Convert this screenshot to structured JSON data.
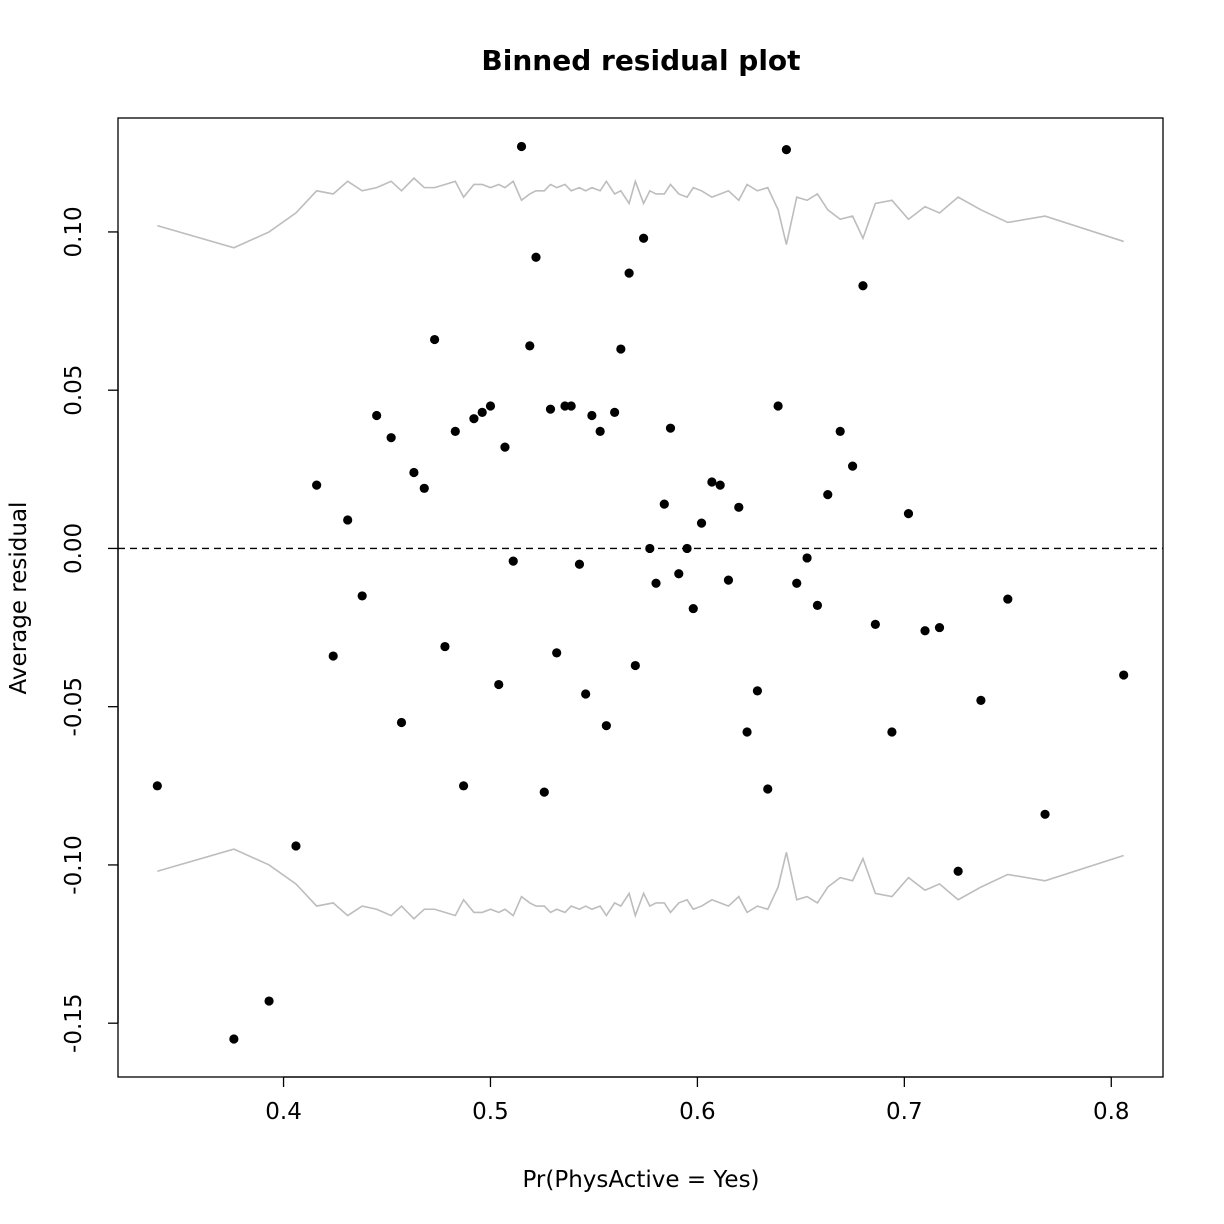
{
  "chart_data": {
    "type": "scatter",
    "title": "Binned residual plot",
    "xlabel": "Pr(PhysActive = Yes)",
    "ylabel": "Average residual",
    "xlim": [
      0.32,
      0.825
    ],
    "ylim": [
      -0.167,
      0.136
    ],
    "xticks": [
      0.4,
      0.5,
      0.6,
      0.7,
      0.8
    ],
    "xtick_labels": [
      "0.4",
      "0.5",
      "0.6",
      "0.7",
      "0.8"
    ],
    "yticks": [
      -0.15,
      -0.1,
      -0.05,
      0.0,
      0.05,
      0.1
    ],
    "ytick_labels": [
      "-0.15",
      "-0.10",
      "-0.05",
      "0.00",
      "0.05",
      "0.10"
    ],
    "reference_line": {
      "y": 0,
      "style": "dashed",
      "color": "#000000"
    },
    "band_color": "#bdbdbd",
    "point_color": "#000000",
    "grid": false,
    "points": [
      [
        0.339,
        -0.075
      ],
      [
        0.376,
        -0.155
      ],
      [
        0.393,
        -0.143
      ],
      [
        0.406,
        -0.094
      ],
      [
        0.416,
        0.02
      ],
      [
        0.424,
        -0.034
      ],
      [
        0.431,
        0.009
      ],
      [
        0.438,
        -0.015
      ],
      [
        0.445,
        0.042
      ],
      [
        0.452,
        0.035
      ],
      [
        0.457,
        -0.055
      ],
      [
        0.463,
        0.024
      ],
      [
        0.468,
        0.019
      ],
      [
        0.473,
        0.066
      ],
      [
        0.478,
        -0.031
      ],
      [
        0.483,
        0.037
      ],
      [
        0.487,
        -0.075
      ],
      [
        0.492,
        0.041
      ],
      [
        0.496,
        0.043
      ],
      [
        0.5,
        0.045
      ],
      [
        0.504,
        -0.043
      ],
      [
        0.507,
        0.032
      ],
      [
        0.511,
        -0.004
      ],
      [
        0.515,
        0.127
      ],
      [
        0.519,
        0.064
      ],
      [
        0.522,
        0.092
      ],
      [
        0.526,
        -0.077
      ],
      [
        0.529,
        0.044
      ],
      [
        0.532,
        -0.033
      ],
      [
        0.536,
        0.045
      ],
      [
        0.539,
        0.045
      ],
      [
        0.543,
        -0.005
      ],
      [
        0.546,
        -0.046
      ],
      [
        0.549,
        0.042
      ],
      [
        0.553,
        0.037
      ],
      [
        0.556,
        -0.056
      ],
      [
        0.56,
        0.043
      ],
      [
        0.563,
        0.063
      ],
      [
        0.567,
        0.087
      ],
      [
        0.57,
        -0.037
      ],
      [
        0.574,
        0.098
      ],
      [
        0.577,
        0.0
      ],
      [
        0.58,
        -0.011
      ],
      [
        0.584,
        0.014
      ],
      [
        0.587,
        0.038
      ],
      [
        0.591,
        -0.008
      ],
      [
        0.595,
        0.0
      ],
      [
        0.598,
        -0.019
      ],
      [
        0.602,
        0.008
      ],
      [
        0.607,
        0.021
      ],
      [
        0.611,
        0.02
      ],
      [
        0.615,
        -0.01
      ],
      [
        0.62,
        0.013
      ],
      [
        0.624,
        -0.058
      ],
      [
        0.629,
        -0.045
      ],
      [
        0.634,
        -0.076
      ],
      [
        0.639,
        0.045
      ],
      [
        0.643,
        0.126
      ],
      [
        0.648,
        -0.011
      ],
      [
        0.653,
        -0.003
      ],
      [
        0.658,
        -0.018
      ],
      [
        0.663,
        0.017
      ],
      [
        0.669,
        0.037
      ],
      [
        0.675,
        0.026
      ],
      [
        0.68,
        0.083
      ],
      [
        0.686,
        -0.024
      ],
      [
        0.694,
        -0.058
      ],
      [
        0.702,
        0.011
      ],
      [
        0.71,
        -0.026
      ],
      [
        0.717,
        -0.025
      ],
      [
        0.726,
        -0.102
      ],
      [
        0.737,
        -0.048
      ],
      [
        0.75,
        -0.016
      ],
      [
        0.768,
        -0.084
      ],
      [
        0.806,
        -0.04
      ]
    ],
    "band_upper": [
      [
        0.339,
        0.102
      ],
      [
        0.376,
        0.095
      ],
      [
        0.393,
        0.1
      ],
      [
        0.406,
        0.106
      ],
      [
        0.416,
        0.113
      ],
      [
        0.424,
        0.112
      ],
      [
        0.431,
        0.116
      ],
      [
        0.438,
        0.113
      ],
      [
        0.445,
        0.114
      ],
      [
        0.452,
        0.116
      ],
      [
        0.457,
        0.113
      ],
      [
        0.463,
        0.117
      ],
      [
        0.468,
        0.114
      ],
      [
        0.473,
        0.114
      ],
      [
        0.478,
        0.115
      ],
      [
        0.483,
        0.116
      ],
      [
        0.487,
        0.111
      ],
      [
        0.492,
        0.115
      ],
      [
        0.496,
        0.115
      ],
      [
        0.5,
        0.114
      ],
      [
        0.504,
        0.115
      ],
      [
        0.507,
        0.114
      ],
      [
        0.511,
        0.116
      ],
      [
        0.515,
        0.11
      ],
      [
        0.519,
        0.112
      ],
      [
        0.522,
        0.113
      ],
      [
        0.526,
        0.113
      ],
      [
        0.529,
        0.115
      ],
      [
        0.532,
        0.114
      ],
      [
        0.536,
        0.115
      ],
      [
        0.539,
        0.113
      ],
      [
        0.543,
        0.114
      ],
      [
        0.546,
        0.113
      ],
      [
        0.549,
        0.114
      ],
      [
        0.553,
        0.113
      ],
      [
        0.556,
        0.116
      ],
      [
        0.56,
        0.112
      ],
      [
        0.563,
        0.113
      ],
      [
        0.567,
        0.109
      ],
      [
        0.57,
        0.116
      ],
      [
        0.574,
        0.109
      ],
      [
        0.577,
        0.113
      ],
      [
        0.58,
        0.112
      ],
      [
        0.584,
        0.112
      ],
      [
        0.587,
        0.115
      ],
      [
        0.591,
        0.112
      ],
      [
        0.595,
        0.111
      ],
      [
        0.598,
        0.114
      ],
      [
        0.602,
        0.113
      ],
      [
        0.607,
        0.111
      ],
      [
        0.611,
        0.112
      ],
      [
        0.615,
        0.113
      ],
      [
        0.62,
        0.11
      ],
      [
        0.624,
        0.115
      ],
      [
        0.629,
        0.113
      ],
      [
        0.634,
        0.114
      ],
      [
        0.639,
        0.107
      ],
      [
        0.643,
        0.096
      ],
      [
        0.648,
        0.111
      ],
      [
        0.653,
        0.11
      ],
      [
        0.658,
        0.112
      ],
      [
        0.663,
        0.107
      ],
      [
        0.669,
        0.104
      ],
      [
        0.675,
        0.105
      ],
      [
        0.68,
        0.098
      ],
      [
        0.686,
        0.109
      ],
      [
        0.694,
        0.11
      ],
      [
        0.702,
        0.104
      ],
      [
        0.71,
        0.108
      ],
      [
        0.717,
        0.106
      ],
      [
        0.726,
        0.111
      ],
      [
        0.737,
        0.107
      ],
      [
        0.75,
        0.103
      ],
      [
        0.768,
        0.105
      ],
      [
        0.806,
        0.097
      ]
    ],
    "band_lower": [
      [
        0.339,
        -0.102
      ],
      [
        0.376,
        -0.095
      ],
      [
        0.393,
        -0.1
      ],
      [
        0.406,
        -0.106
      ],
      [
        0.416,
        -0.113
      ],
      [
        0.424,
        -0.112
      ],
      [
        0.431,
        -0.116
      ],
      [
        0.438,
        -0.113
      ],
      [
        0.445,
        -0.114
      ],
      [
        0.452,
        -0.116
      ],
      [
        0.457,
        -0.113
      ],
      [
        0.463,
        -0.117
      ],
      [
        0.468,
        -0.114
      ],
      [
        0.473,
        -0.114
      ],
      [
        0.478,
        -0.115
      ],
      [
        0.483,
        -0.116
      ],
      [
        0.487,
        -0.111
      ],
      [
        0.492,
        -0.115
      ],
      [
        0.496,
        -0.115
      ],
      [
        0.5,
        -0.114
      ],
      [
        0.504,
        -0.115
      ],
      [
        0.507,
        -0.114
      ],
      [
        0.511,
        -0.116
      ],
      [
        0.515,
        -0.11
      ],
      [
        0.519,
        -0.112
      ],
      [
        0.522,
        -0.113
      ],
      [
        0.526,
        -0.113
      ],
      [
        0.529,
        -0.115
      ],
      [
        0.532,
        -0.114
      ],
      [
        0.536,
        -0.115
      ],
      [
        0.539,
        -0.113
      ],
      [
        0.543,
        -0.114
      ],
      [
        0.546,
        -0.113
      ],
      [
        0.549,
        -0.114
      ],
      [
        0.553,
        -0.113
      ],
      [
        0.556,
        -0.116
      ],
      [
        0.56,
        -0.112
      ],
      [
        0.563,
        -0.113
      ],
      [
        0.567,
        -0.109
      ],
      [
        0.57,
        -0.116
      ],
      [
        0.574,
        -0.109
      ],
      [
        0.577,
        -0.113
      ],
      [
        0.58,
        -0.112
      ],
      [
        0.584,
        -0.112
      ],
      [
        0.587,
        -0.115
      ],
      [
        0.591,
        -0.112
      ],
      [
        0.595,
        -0.111
      ],
      [
        0.598,
        -0.114
      ],
      [
        0.602,
        -0.113
      ],
      [
        0.607,
        -0.111
      ],
      [
        0.611,
        -0.112
      ],
      [
        0.615,
        -0.113
      ],
      [
        0.62,
        -0.11
      ],
      [
        0.624,
        -0.115
      ],
      [
        0.629,
        -0.113
      ],
      [
        0.634,
        -0.114
      ],
      [
        0.639,
        -0.107
      ],
      [
        0.643,
        -0.096
      ],
      [
        0.648,
        -0.111
      ],
      [
        0.653,
        -0.11
      ],
      [
        0.658,
        -0.112
      ],
      [
        0.663,
        -0.107
      ],
      [
        0.669,
        -0.104
      ],
      [
        0.675,
        -0.105
      ],
      [
        0.68,
        -0.098
      ],
      [
        0.686,
        -0.109
      ],
      [
        0.694,
        -0.11
      ],
      [
        0.702,
        -0.104
      ],
      [
        0.71,
        -0.108
      ],
      [
        0.717,
        -0.106
      ],
      [
        0.726,
        -0.111
      ],
      [
        0.737,
        -0.107
      ],
      [
        0.75,
        -0.103
      ],
      [
        0.768,
        -0.105
      ],
      [
        0.806,
        -0.097
      ]
    ]
  }
}
